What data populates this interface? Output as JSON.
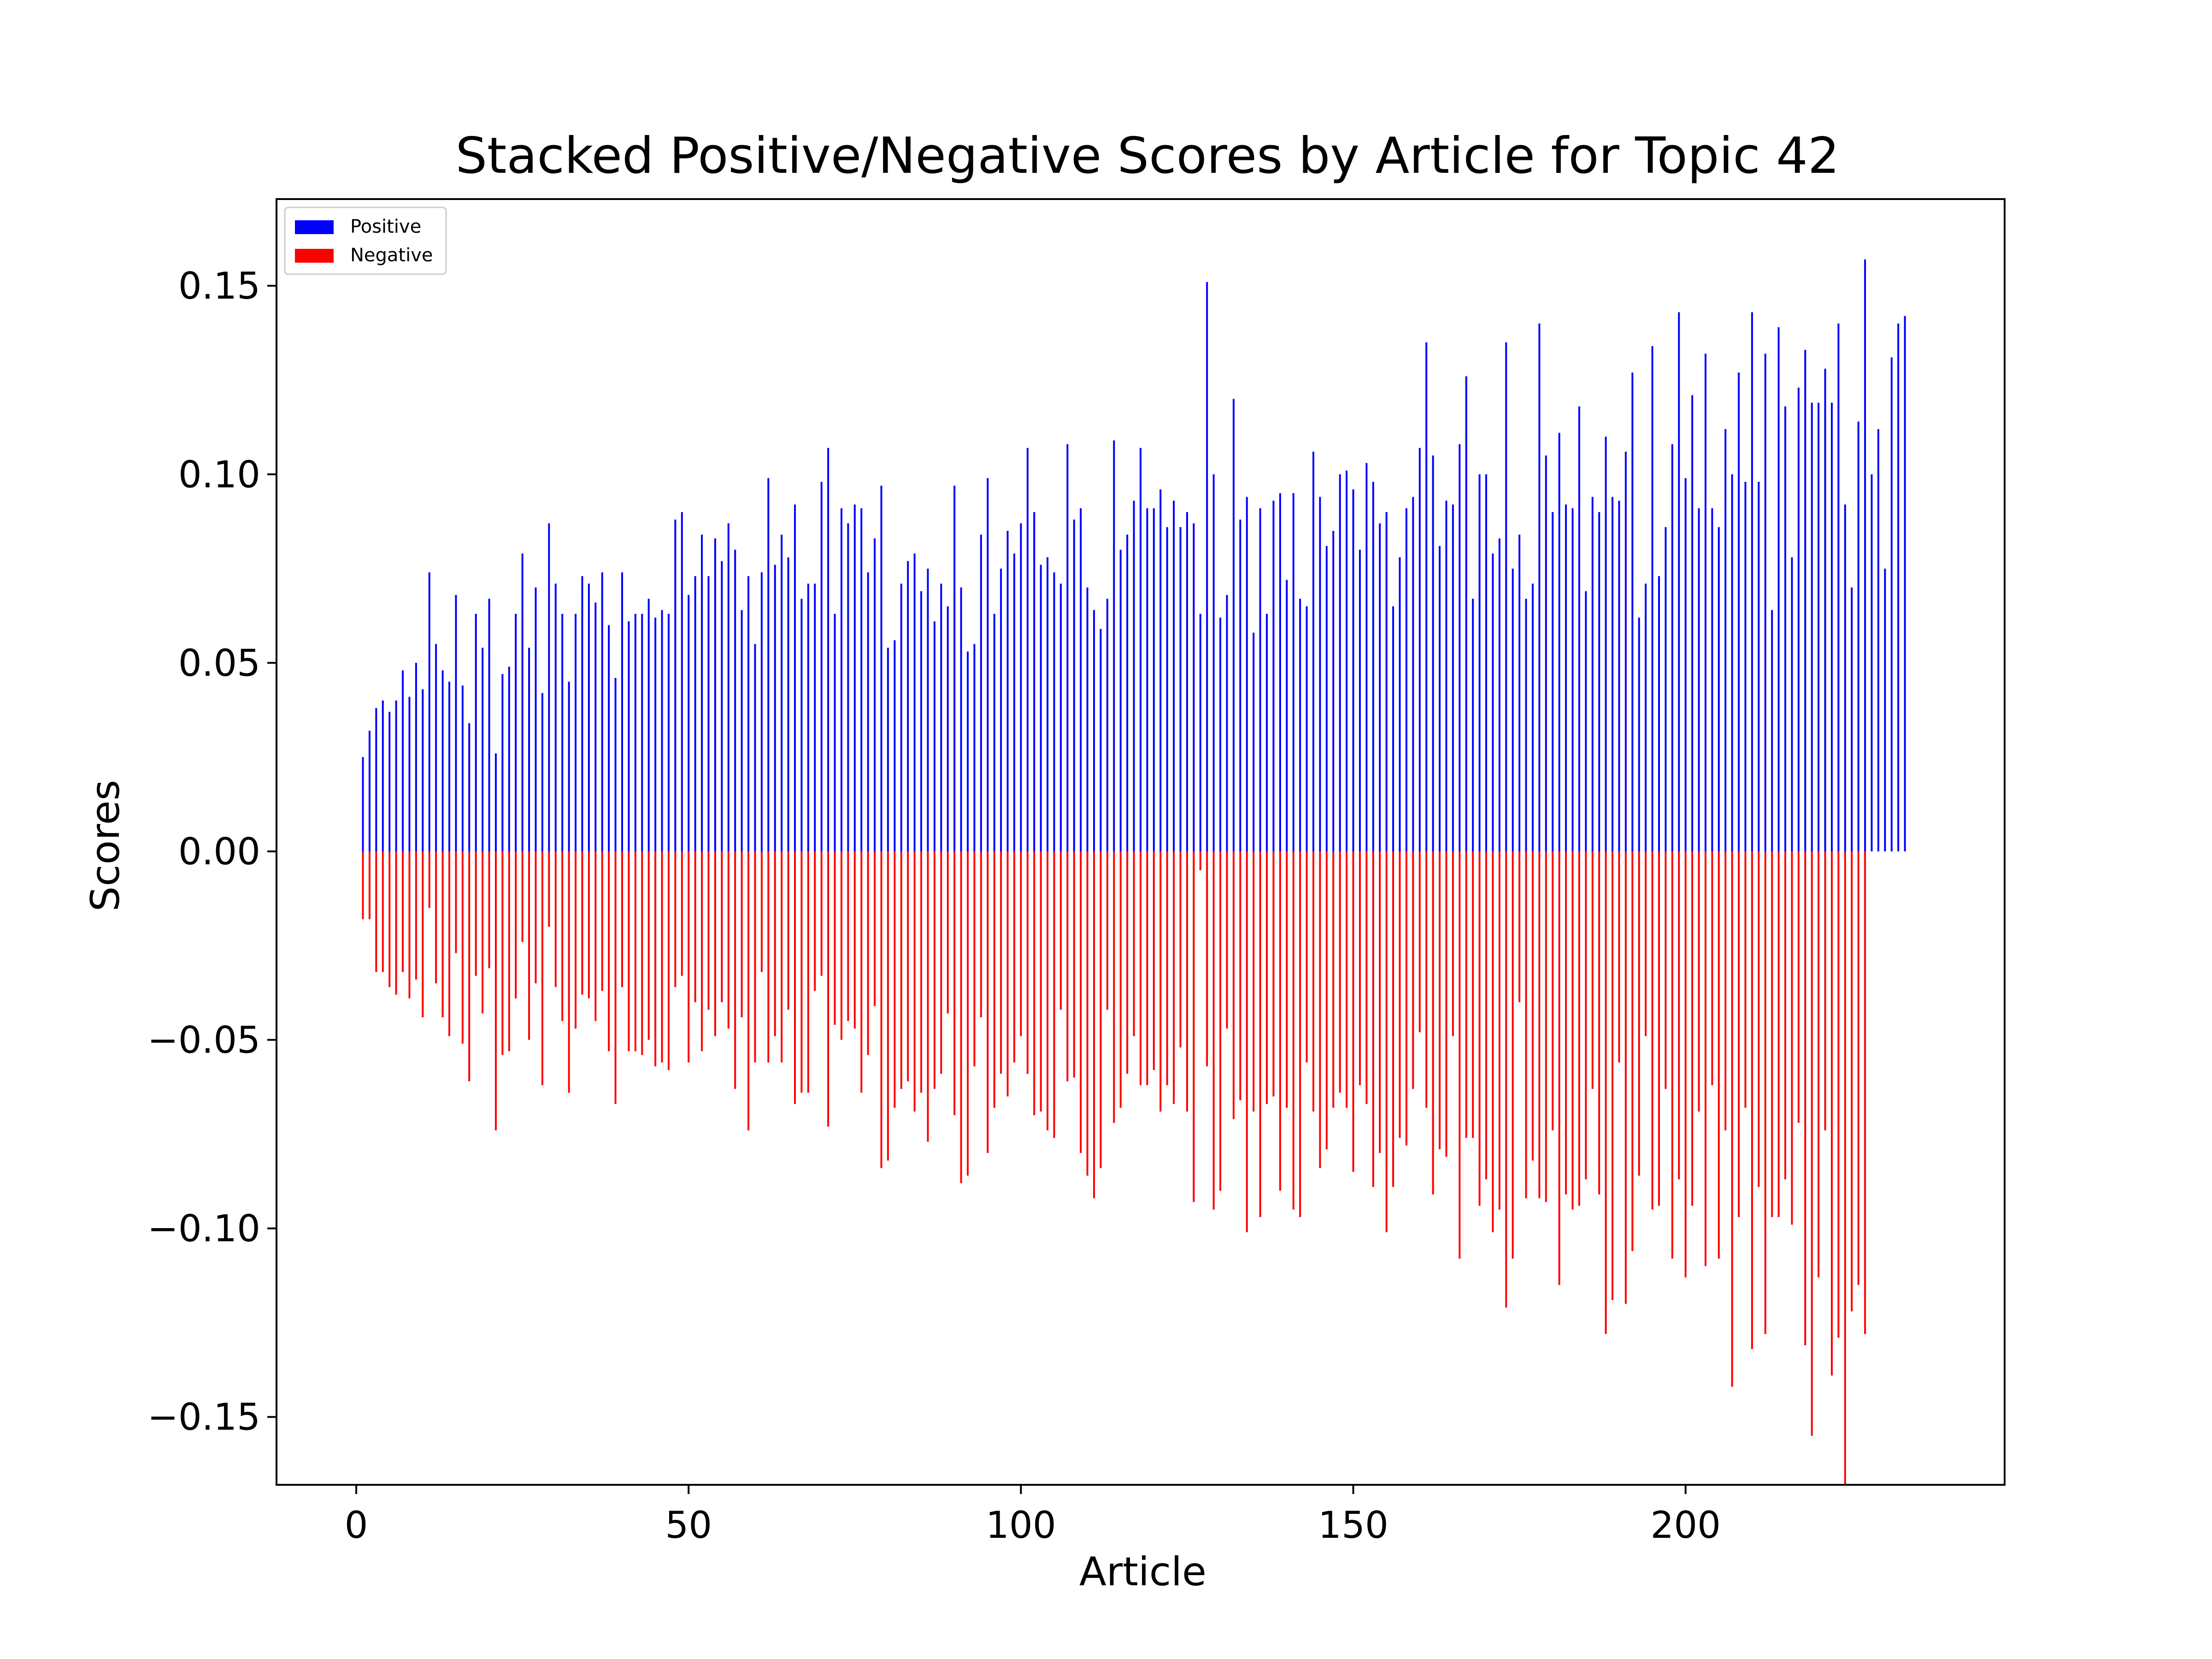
{
  "chart_data": {
    "type": "bar",
    "title": "Stacked Positive/Negative Scores by Article for Topic 42",
    "xlabel": "Article",
    "ylabel": "Scores",
    "xlim": [
      -12,
      248
    ],
    "ylim": [
      -0.168,
      0.173
    ],
    "x_ticks": [
      0,
      50,
      100,
      150,
      200
    ],
    "x_tick_labels": [
      "0",
      "50",
      "100",
      "150",
      "200"
    ],
    "y_ticks": [
      -0.15,
      -0.1,
      -0.05,
      0.0,
      0.05,
      0.1,
      0.15
    ],
    "y_tick_labels": [
      "−0.15",
      "−0.10",
      "−0.05",
      "0.00",
      "0.05",
      "0.10",
      "0.15"
    ],
    "legend_position": "top-left",
    "grid": false,
    "colors": {
      "positive": "#0000ff",
      "negative": "#ff0000"
    },
    "x_start": 1,
    "series": [
      {
        "name": "Positive",
        "values": [
          0.025,
          0.032,
          0.038,
          0.04,
          0.037,
          0.04,
          0.048,
          0.041,
          0.05,
          0.043,
          0.074,
          0.055,
          0.048,
          0.045,
          0.068,
          0.044,
          0.034,
          0.063,
          0.054,
          0.067,
          0.026,
          0.047,
          0.049,
          0.063,
          0.079,
          0.054,
          0.07,
          0.042,
          0.087,
          0.071,
          0.063,
          0.045,
          0.063,
          0.073,
          0.071,
          0.066,
          0.074,
          0.06,
          0.046,
          0.074,
          0.061,
          0.063,
          0.063,
          0.067,
          0.062,
          0.064,
          0.063,
          0.088,
          0.09,
          0.068,
          0.073,
          0.084,
          0.073,
          0.083,
          0.077,
          0.087,
          0.08,
          0.064,
          0.073,
          0.055,
          0.074,
          0.099,
          0.076,
          0.084,
          0.078,
          0.092,
          0.067,
          0.071,
          0.071,
          0.098,
          0.107,
          0.063,
          0.091,
          0.087,
          0.092,
          0.091,
          0.074,
          0.083,
          0.097,
          0.054,
          0.056,
          0.071,
          0.077,
          0.079,
          0.069,
          0.075,
          0.061,
          0.071,
          0.065,
          0.097,
          0.07,
          0.053,
          0.055,
          0.084,
          0.099,
          0.063,
          0.075,
          0.085,
          0.079,
          0.087,
          0.107,
          0.09,
          0.076,
          0.078,
          0.074,
          0.071,
          0.108,
          0.088,
          0.091,
          0.07,
          0.064,
          0.059,
          0.067,
          0.109,
          0.08,
          0.084,
          0.093,
          0.107,
          0.091,
          0.091,
          0.096,
          0.086,
          0.093,
          0.086,
          0.09,
          0.087,
          0.063,
          0.151,
          0.1,
          0.062,
          0.068,
          0.12,
          0.088,
          0.094,
          0.058,
          0.091,
          0.063,
          0.093,
          0.095,
          0.072,
          0.095,
          0.067,
          0.065,
          0.106,
          0.094,
          0.081,
          0.085,
          0.1,
          0.101,
          0.096,
          0.08,
          0.103,
          0.098,
          0.087,
          0.09,
          0.065,
          0.078,
          0.091,
          0.094,
          0.107,
          0.135,
          0.105,
          0.081,
          0.093,
          0.092,
          0.108,
          0.126,
          0.067,
          0.1,
          0.1,
          0.079,
          0.083,
          0.135,
          0.075,
          0.084,
          0.067,
          0.071,
          0.14,
          0.105,
          0.09,
          0.111,
          0.092,
          0.091,
          0.118,
          0.069,
          0.094,
          0.09,
          0.11,
          0.094,
          0.093,
          0.106,
          0.127,
          0.062,
          0.071,
          0.134,
          0.073,
          0.086,
          0.108,
          0.143,
          0.099,
          0.121,
          0.091,
          0.132,
          0.091,
          0.086,
          0.112,
          0.1,
          0.127,
          0.098,
          0.143,
          0.098,
          0.132,
          0.064,
          0.139,
          0.118,
          0.078,
          0.123,
          0.133,
          0.119,
          0.119,
          0.128,
          0.119,
          0.14,
          0.092,
          0.07,
          0.114,
          0.157,
          0.1,
          0.112,
          0.075,
          0.131,
          0.14,
          0.142
        ]
      },
      {
        "name": "Negative",
        "values": [
          -0.018,
          -0.018,
          -0.032,
          -0.032,
          -0.036,
          -0.038,
          -0.032,
          -0.039,
          -0.034,
          -0.044,
          -0.015,
          -0.035,
          -0.044,
          -0.049,
          -0.027,
          -0.051,
          -0.061,
          -0.033,
          -0.043,
          -0.031,
          -0.074,
          -0.054,
          -0.053,
          -0.039,
          -0.024,
          -0.05,
          -0.035,
          -0.062,
          -0.02,
          -0.036,
          -0.045,
          -0.064,
          -0.047,
          -0.038,
          -0.039,
          -0.045,
          -0.037,
          -0.053,
          -0.067,
          -0.036,
          -0.053,
          -0.053,
          -0.054,
          -0.05,
          -0.057,
          -0.056,
          -0.058,
          -0.036,
          -0.033,
          -0.056,
          -0.04,
          -0.053,
          -0.042,
          -0.049,
          -0.04,
          -0.047,
          -0.063,
          -0.044,
          -0.074,
          -0.056,
          -0.032,
          -0.056,
          -0.049,
          -0.056,
          -0.042,
          -0.067,
          -0.064,
          -0.064,
          -0.037,
          -0.033,
          -0.073,
          -0.046,
          -0.05,
          -0.045,
          -0.047,
          -0.064,
          -0.054,
          -0.041,
          -0.084,
          -0.082,
          -0.068,
          -0.063,
          -0.061,
          -0.069,
          -0.064,
          -0.077,
          -0.063,
          -0.059,
          -0.043,
          -0.07,
          -0.088,
          -0.086,
          -0.057,
          -0.044,
          -0.08,
          -0.068,
          -0.059,
          -0.065,
          -0.056,
          -0.049,
          -0.059,
          -0.07,
          -0.069,
          -0.074,
          -0.076,
          -0.042,
          -0.061,
          -0.06,
          -0.08,
          -0.086,
          -0.092,
          -0.084,
          -0.042,
          -0.072,
          -0.068,
          -0.059,
          -0.049,
          -0.062,
          -0.062,
          -0.058,
          -0.069,
          -0.062,
          -0.067,
          -0.052,
          -0.069,
          -0.093,
          -0.005,
          -0.057,
          -0.095,
          -0.09,
          -0.047,
          -0.071,
          -0.066,
          -0.101,
          -0.069,
          -0.097,
          -0.067,
          -0.065,
          -0.09,
          -0.068,
          -0.095,
          -0.097,
          -0.056,
          -0.069,
          -0.084,
          -0.079,
          -0.068,
          -0.064,
          -0.068,
          -0.085,
          -0.062,
          -0.067,
          -0.089,
          -0.08,
          -0.101,
          -0.089,
          -0.076,
          -0.078,
          -0.063,
          -0.048,
          -0.068,
          -0.091,
          -0.079,
          -0.081,
          -0.049,
          -0.108,
          -0.076,
          -0.076,
          -0.094,
          -0.087,
          -0.101,
          -0.095,
          -0.121,
          -0.108,
          -0.04,
          -0.092,
          -0.082,
          -0.092,
          -0.093,
          -0.074,
          -0.115,
          -0.091,
          -0.095,
          -0.094,
          -0.087,
          -0.063,
          -0.091,
          -0.128,
          -0.119,
          -0.056,
          -0.12,
          -0.106,
          -0.086,
          -0.049,
          -0.095,
          -0.094,
          -0.063,
          -0.108,
          -0.087,
          -0.113,
          -0.094,
          -0.069,
          -0.11,
          -0.062,
          -0.108,
          -0.074,
          -0.142,
          -0.097,
          -0.068,
          -0.132,
          -0.089,
          -0.128,
          -0.097,
          -0.097,
          -0.087,
          -0.099,
          -0.072,
          -0.131,
          -0.155,
          -0.113,
          -0.074,
          -0.139,
          -0.129,
          -0.168,
          -0.122,
          -0.115,
          -0.128
        ]
      }
    ]
  }
}
